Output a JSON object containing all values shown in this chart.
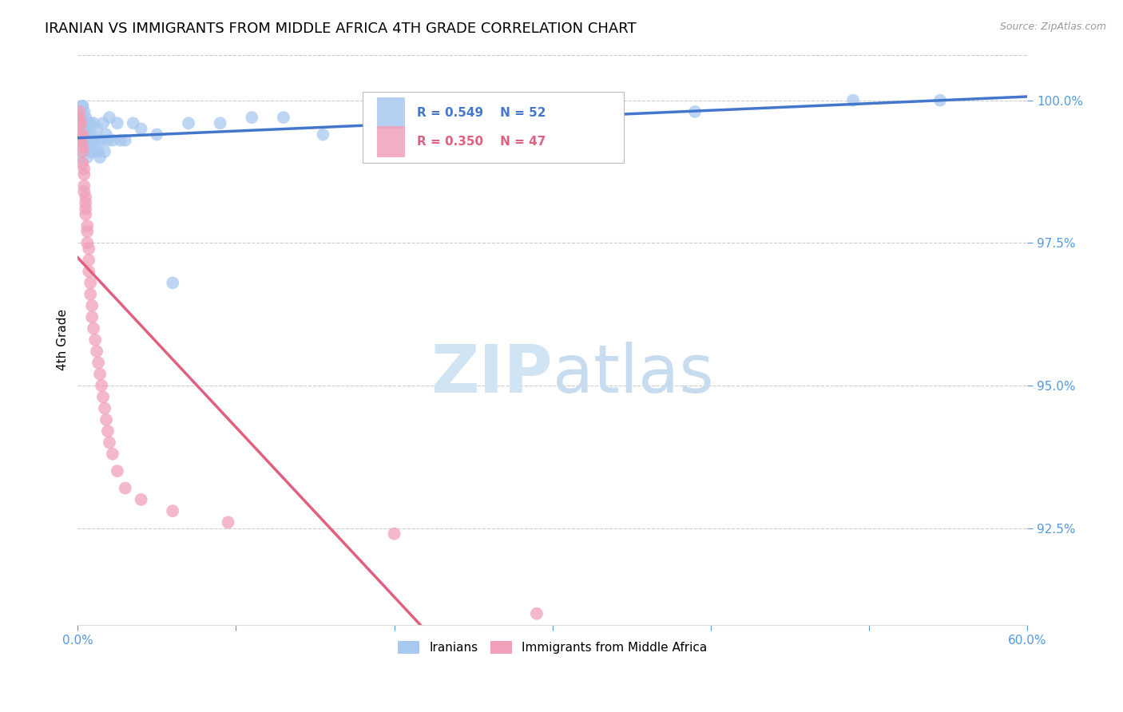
{
  "title": "IRANIAN VS IMMIGRANTS FROM MIDDLE AFRICA 4TH GRADE CORRELATION CHART",
  "source": "Source: ZipAtlas.com",
  "ylabel": "4th Grade",
  "xlim": [
    0.0,
    0.6
  ],
  "ylim": [
    0.908,
    1.008
  ],
  "yticks": [
    0.925,
    0.95,
    0.975,
    1.0
  ],
  "ytick_labels": [
    "92.5%",
    "95.0%",
    "97.5%",
    "100.0%"
  ],
  "xtick_positions": [
    0.0,
    0.1,
    0.2,
    0.3,
    0.4,
    0.5,
    0.6
  ],
  "blue_color": "#A8C8F0",
  "pink_color": "#F0A0B8",
  "blue_line_color": "#4477CC",
  "pink_line_color": "#E06080",
  "blue_label": "Iranians",
  "pink_label": "Immigrants from Middle Africa",
  "blue_R": 0.549,
  "blue_N": 52,
  "pink_R": 0.35,
  "pink_N": 47,
  "blue_x": [
    0.001,
    0.002,
    0.002,
    0.003,
    0.003,
    0.003,
    0.004,
    0.004,
    0.004,
    0.005,
    0.005,
    0.005,
    0.006,
    0.006,
    0.007,
    0.007,
    0.008,
    0.008,
    0.008,
    0.009,
    0.009,
    0.01,
    0.01,
    0.011,
    0.012,
    0.013,
    0.013,
    0.014,
    0.015,
    0.016,
    0.017,
    0.018,
    0.019,
    0.02,
    0.022,
    0.025,
    0.027,
    0.03,
    0.035,
    0.04,
    0.05,
    0.06,
    0.07,
    0.09,
    0.11,
    0.13,
    0.155,
    0.2,
    0.28,
    0.39,
    0.49,
    0.545
  ],
  "blue_y": [
    0.99,
    0.993,
    0.997,
    0.995,
    0.999,
    0.999,
    0.995,
    0.998,
    0.993,
    0.997,
    0.994,
    0.992,
    0.99,
    0.994,
    0.996,
    0.993,
    0.991,
    0.996,
    0.994,
    0.993,
    0.991,
    0.996,
    0.993,
    0.991,
    0.995,
    0.993,
    0.991,
    0.99,
    0.993,
    0.996,
    0.991,
    0.994,
    0.993,
    0.997,
    0.993,
    0.996,
    0.993,
    0.993,
    0.996,
    0.995,
    0.994,
    0.968,
    0.996,
    0.996,
    0.997,
    0.997,
    0.994,
    0.997,
    0.998,
    0.998,
    1.0,
    1.0
  ],
  "pink_x": [
    0.001,
    0.001,
    0.001,
    0.002,
    0.002,
    0.002,
    0.003,
    0.003,
    0.003,
    0.003,
    0.004,
    0.004,
    0.004,
    0.004,
    0.005,
    0.005,
    0.005,
    0.005,
    0.006,
    0.006,
    0.006,
    0.007,
    0.007,
    0.007,
    0.008,
    0.008,
    0.009,
    0.009,
    0.01,
    0.011,
    0.012,
    0.013,
    0.014,
    0.015,
    0.016,
    0.017,
    0.018,
    0.019,
    0.02,
    0.022,
    0.025,
    0.03,
    0.04,
    0.06,
    0.095,
    0.2,
    0.29
  ],
  "pink_y": [
    0.997,
    0.996,
    0.998,
    0.996,
    0.994,
    0.993,
    0.994,
    0.992,
    0.991,
    0.989,
    0.988,
    0.987,
    0.985,
    0.984,
    0.983,
    0.981,
    0.98,
    0.982,
    0.978,
    0.977,
    0.975,
    0.974,
    0.972,
    0.97,
    0.968,
    0.966,
    0.964,
    0.962,
    0.96,
    0.958,
    0.956,
    0.954,
    0.952,
    0.95,
    0.948,
    0.946,
    0.944,
    0.942,
    0.94,
    0.938,
    0.935,
    0.932,
    0.93,
    0.928,
    0.926,
    0.924,
    0.91
  ],
  "background_color": "#FFFFFF",
  "grid_color": "#CCCCCC",
  "tick_color": "#5599DD",
  "title_fontsize": 13,
  "axis_label_fontsize": 11,
  "tick_fontsize": 11,
  "source_fontsize": 9,
  "legend_fontsize": 11,
  "watermark_zip": "ZIP",
  "watermark_atlas": "atlas",
  "watermark_color_zip": "#D0E4F4",
  "watermark_color_atlas": "#C8DCF0",
  "watermark_fontsize": 60
}
